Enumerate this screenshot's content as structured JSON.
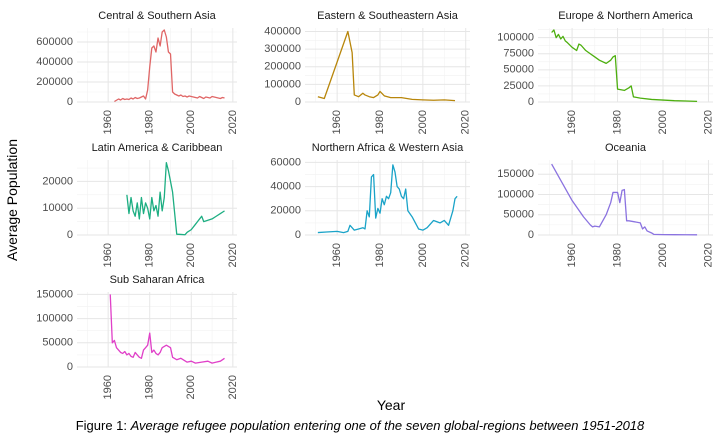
{
  "chart_data": {
    "type": "line",
    "xlabel": "Year",
    "ylabel": "Average Population",
    "caption_prefix": "Figure 1: ",
    "caption_text": "Average refugee population entering one of the seven global-regions between 1951-2018",
    "grid": true,
    "xlim": [
      1945,
      2022
    ],
    "x_ticks": [
      1960,
      1980,
      2000,
      2020
    ],
    "panels": [
      {
        "title": "Central & Southern Asia",
        "color": "#E06666",
        "ylim": [
          0,
          740000
        ],
        "y_ticks": [
          0,
          200000,
          400000,
          600000
        ],
        "y_tick_labels": [
          "0",
          "200000",
          "400000",
          "600000"
        ],
        "x": [
          1963,
          1965,
          1966,
          1967,
          1968,
          1969,
          1970,
          1971,
          1972,
          1973,
          1974,
          1975,
          1976,
          1977,
          1978,
          1979,
          1980,
          1981,
          1982,
          1983,
          1984,
          1985,
          1986,
          1987,
          1988,
          1989,
          1990,
          1991,
          1992,
          1993,
          1994,
          1995,
          1996,
          1997,
          1998,
          1999,
          2000,
          2001,
          2002,
          2003,
          2004,
          2005,
          2006,
          2007,
          2008,
          2009,
          2010,
          2011,
          2012,
          2013,
          2014,
          2015,
          2016
        ],
        "y": [
          5000,
          30000,
          20000,
          35000,
          25000,
          30000,
          25000,
          40000,
          30000,
          45000,
          35000,
          40000,
          50000,
          60000,
          30000,
          120000,
          350000,
          540000,
          560000,
          500000,
          640000,
          560000,
          700000,
          720000,
          650000,
          500000,
          480000,
          100000,
          80000,
          70000,
          60000,
          70000,
          55000,
          60000,
          50000,
          60000,
          55000,
          50000,
          45000,
          40000,
          55000,
          45000,
          35000,
          50000,
          45000,
          40000,
          55000,
          50000,
          45000,
          40000,
          35000,
          45000,
          40000
        ]
      },
      {
        "title": "Eastern & Southeastern Asia",
        "color": "#B8860B",
        "ylim": [
          0,
          420000
        ],
        "y_ticks": [
          0,
          100000,
          200000,
          300000,
          400000
        ],
        "y_tick_labels": [
          "0",
          "100000",
          "200000",
          "300000",
          "400000"
        ],
        "x": [
          1951,
          1954,
          1965,
          1967,
          1968,
          1970,
          1972,
          1973,
          1975,
          1977,
          1979,
          1980,
          1982,
          1985,
          1990,
          1995,
          2000,
          2005,
          2010,
          2015
        ],
        "y": [
          30000,
          20000,
          400000,
          280000,
          40000,
          30000,
          50000,
          40000,
          30000,
          25000,
          40000,
          60000,
          35000,
          25000,
          25000,
          15000,
          12000,
          10000,
          12000,
          8000
        ]
      },
      {
        "title": "Europe & Northern America",
        "color": "#4DAF0F",
        "ylim": [
          0,
          115000
        ],
        "y_ticks": [
          0,
          25000,
          50000,
          75000,
          100000
        ],
        "y_tick_labels": [
          "0",
          "25000",
          "50000",
          "75000",
          "100000"
        ],
        "x": [
          1951,
          1952,
          1953,
          1954,
          1955,
          1956,
          1957,
          1958,
          1960,
          1962,
          1963,
          1964,
          1966,
          1968,
          1970,
          1972,
          1975,
          1977,
          1978,
          1979,
          1980,
          1983,
          1985,
          1986,
          1987,
          1990,
          1995,
          2000,
          2005,
          2010,
          2015
        ],
        "y": [
          108000,
          112000,
          100000,
          105000,
          98000,
          102000,
          95000,
          92000,
          85000,
          80000,
          90000,
          88000,
          80000,
          75000,
          70000,
          65000,
          60000,
          65000,
          70000,
          72000,
          20000,
          18000,
          22000,
          25000,
          8000,
          6000,
          4000,
          3000,
          2000,
          1500,
          1000
        ]
      },
      {
        "title": "Latin America & Caribbean",
        "color": "#1DAE82",
        "ylim": [
          0,
          28000
        ],
        "y_ticks": [
          0,
          10000,
          20000
        ],
        "y_tick_labels": [
          "0",
          "10000",
          "20000"
        ],
        "x": [
          1969,
          1970,
          1971,
          1972,
          1973,
          1974,
          1975,
          1976,
          1977,
          1978,
          1979,
          1980,
          1981,
          1982,
          1983,
          1984,
          1985,
          1986,
          1987,
          1988,
          1989,
          1990,
          1991,
          1993,
          1995,
          1997,
          1998,
          2000,
          2002,
          2003,
          2004,
          2005,
          2006,
          2008,
          2010,
          2012,
          2014,
          2016
        ],
        "y": [
          15000,
          8000,
          14000,
          9000,
          7000,
          12000,
          6000,
          14000,
          8000,
          12000,
          10000,
          6000,
          14000,
          9000,
          11000,
          7000,
          16000,
          9000,
          14000,
          27000,
          24000,
          20000,
          16000,
          300,
          200,
          100,
          1000,
          2000,
          4000,
          5000,
          6000,
          7000,
          5000,
          5500,
          6000,
          7000,
          8000,
          9000
        ]
      },
      {
        "title": "Northern Africa & Western Asia",
        "color": "#1AA3C8",
        "ylim": [
          0,
          62000
        ],
        "y_ticks": [
          0,
          20000,
          40000,
          60000
        ],
        "y_tick_labels": [
          "0",
          "20000",
          "40000",
          "60000"
        ],
        "x": [
          1951,
          1955,
          1960,
          1963,
          1965,
          1966,
          1968,
          1970,
          1972,
          1973,
          1974,
          1975,
          1976,
          1977,
          1978,
          1979,
          1980,
          1981,
          1982,
          1983,
          1984,
          1985,
          1986,
          1987,
          1988,
          1989,
          1990,
          1991,
          1992,
          1993,
          1995,
          1998,
          2000,
          2002,
          2005,
          2008,
          2010,
          2012,
          2014,
          2015,
          2016
        ],
        "y": [
          2000,
          2500,
          3000,
          2000,
          3000,
          8000,
          4000,
          5000,
          6000,
          5000,
          20000,
          15000,
          48000,
          50000,
          14000,
          22000,
          18000,
          30000,
          25000,
          32000,
          30000,
          35000,
          58000,
          52000,
          40000,
          38000,
          32000,
          30000,
          38000,
          20000,
          15000,
          5000,
          4000,
          6000,
          12000,
          10000,
          12000,
          8000,
          20000,
          30000,
          32000
        ]
      },
      {
        "title": "Oceania",
        "color": "#8B73E0",
        "ylim": [
          0,
          185000
        ],
        "y_ticks": [
          0,
          50000,
          100000,
          150000
        ],
        "y_tick_labels": [
          "0",
          "50000",
          "100000",
          "150000"
        ],
        "x": [
          1951,
          1955,
          1960,
          1965,
          1968,
          1969,
          1970,
          1972,
          1975,
          1977,
          1978,
          1979,
          1980,
          1981,
          1982,
          1983,
          1984,
          1985,
          1990,
          1991,
          1992,
          1993,
          1995,
          1996,
          2000,
          2005,
          2010,
          2015
        ],
        "y": [
          175000,
          135000,
          85000,
          45000,
          25000,
          20000,
          22000,
          20000,
          50000,
          80000,
          105000,
          105000,
          105000,
          80000,
          110000,
          112000,
          35000,
          35000,
          30000,
          15000,
          20000,
          10000,
          5000,
          1500,
          1000,
          800,
          600,
          500
        ]
      },
      {
        "title": "Sub Saharan Africa",
        "color": "#E040C8",
        "ylim": [
          0,
          155000
        ],
        "y_ticks": [
          0,
          50000,
          100000,
          150000
        ],
        "y_tick_labels": [
          "0",
          "50000",
          "100000",
          "150000"
        ],
        "x": [
          1961,
          1962,
          1963,
          1964,
          1965,
          1966,
          1967,
          1968,
          1969,
          1970,
          1971,
          1972,
          1973,
          1974,
          1975,
          1976,
          1977,
          1978,
          1979,
          1980,
          1981,
          1982,
          1983,
          1984,
          1985,
          1986,
          1988,
          1990,
          1991,
          1993,
          1995,
          1998,
          2000,
          2002,
          2005,
          2008,
          2010,
          2012,
          2014,
          2016
        ],
        "y": [
          150000,
          50000,
          55000,
          40000,
          35000,
          30000,
          28000,
          32000,
          25000,
          28000,
          22000,
          20000,
          30000,
          25000,
          20000,
          18000,
          35000,
          40000,
          45000,
          70000,
          30000,
          35000,
          28000,
          25000,
          30000,
          40000,
          45000,
          40000,
          20000,
          15000,
          18000,
          10000,
          12000,
          8000,
          10000,
          12000,
          8000,
          10000,
          12000,
          18000
        ]
      }
    ]
  }
}
